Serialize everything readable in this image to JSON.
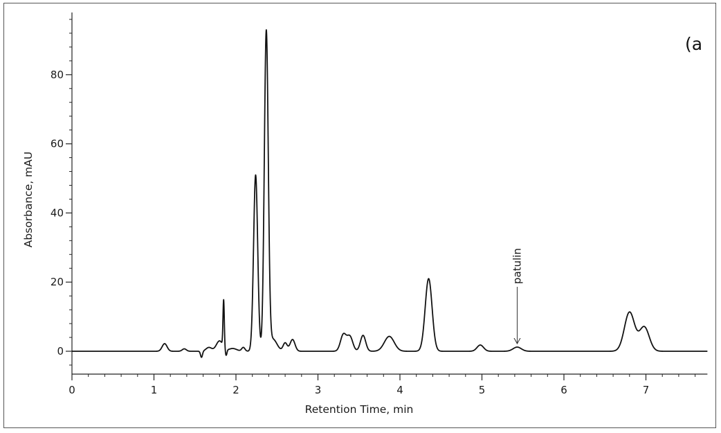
{
  "chart_data": {
    "type": "line",
    "title": "",
    "panel_label": "(a",
    "xlabel": "Retention Time, min",
    "ylabel": "Absorbance, mAU",
    "xlim": [
      0,
      7.75
    ],
    "ylim": [
      -6,
      97
    ],
    "x_ticks": [
      0,
      1,
      2,
      3,
      4,
      5,
      6,
      7
    ],
    "x_tick_labels": [
      "0",
      "1",
      "2",
      "3",
      "4",
      "5",
      "6",
      "7"
    ],
    "y_ticks": [
      0,
      20,
      40,
      60,
      80
    ],
    "y_tick_labels": [
      "0",
      "20",
      "40",
      "60",
      "80"
    ],
    "grid": false,
    "legend": "none",
    "line_color": "#111111",
    "series": [
      {
        "name": "",
        "baseline": 0,
        "peaks": [
          {
            "rt": 1.13,
            "height": 2.2,
            "width": 0.03
          },
          {
            "rt": 1.37,
            "height": 0.7,
            "width": 0.025
          },
          {
            "rt": 1.58,
            "height": -1.8,
            "width": 0.012
          },
          {
            "rt": 1.67,
            "height": 1.1,
            "width": 0.035
          },
          {
            "rt": 1.8,
            "height": 3.0,
            "width": 0.04
          },
          {
            "rt": 1.85,
            "height": 13.5,
            "width": 0.008
          },
          {
            "rt": 1.88,
            "height": -1.8,
            "width": 0.01
          },
          {
            "rt": 1.96,
            "height": 0.8,
            "width": 0.05
          },
          {
            "rt": 2.09,
            "height": 1.1,
            "width": 0.02
          },
          {
            "rt": 2.24,
            "height": 51,
            "width": 0.025
          },
          {
            "rt": 2.37,
            "height": 92,
            "width": 0.024
          },
          {
            "rt": 2.45,
            "height": 3.5,
            "width": 0.05
          },
          {
            "rt": 2.6,
            "height": 2.4,
            "width": 0.025
          },
          {
            "rt": 2.69,
            "height": 3.4,
            "width": 0.03
          },
          {
            "rt": 3.31,
            "height": 4.8,
            "width": 0.035
          },
          {
            "rt": 3.39,
            "height": 4.2,
            "width": 0.035
          },
          {
            "rt": 3.55,
            "height": 4.6,
            "width": 0.032
          },
          {
            "rt": 3.87,
            "height": 4.3,
            "width": 0.06
          },
          {
            "rt": 4.35,
            "height": 21,
            "width": 0.042
          },
          {
            "rt": 4.98,
            "height": 1.8,
            "width": 0.04
          },
          {
            "rt": 5.43,
            "height": 1.2,
            "width": 0.05
          },
          {
            "rt": 6.8,
            "height": 11.3,
            "width": 0.062
          },
          {
            "rt": 6.98,
            "height": 7.0,
            "width": 0.06
          }
        ]
      }
    ],
    "annotations": [
      {
        "text": "patulin",
        "x": 5.43,
        "y": 1.2,
        "orientation": "vertical",
        "arrow": true
      }
    ]
  }
}
